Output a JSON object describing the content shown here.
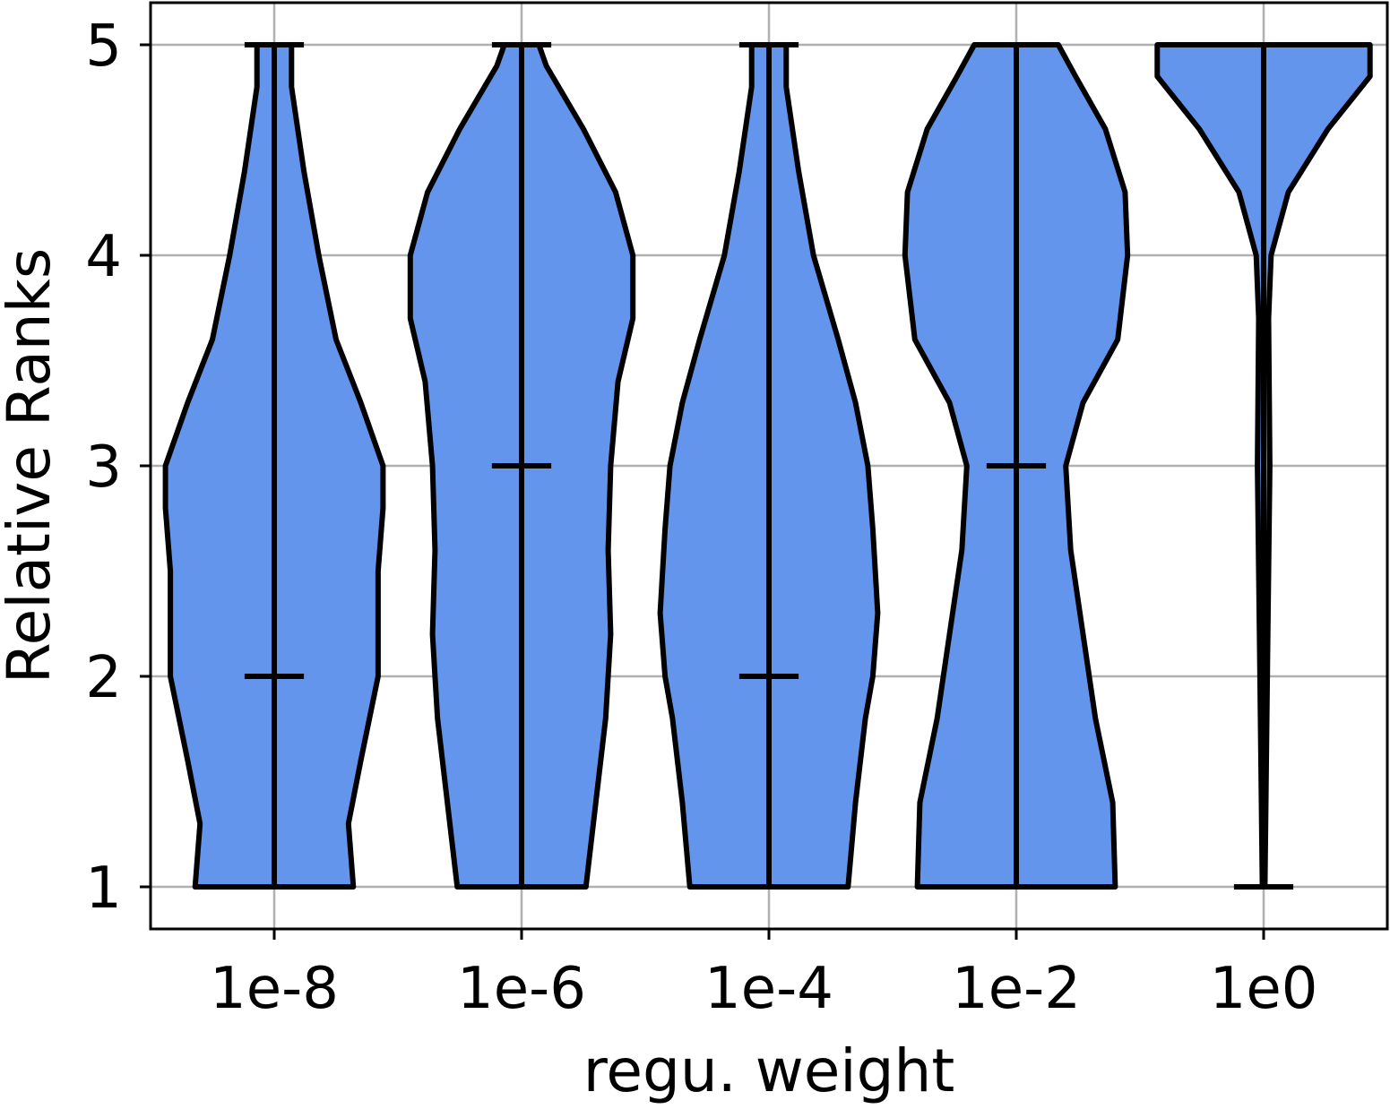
{
  "chart_data": {
    "type": "violin",
    "categories": [
      "1e-8",
      "1e-6",
      "1e-4",
      "1e-2",
      "1e0"
    ],
    "xlabel": "regu. weight",
    "ylabel": "Relative Ranks",
    "ylim": [
      0.8,
      5.2
    ],
    "yticks": [
      1,
      2,
      3,
      4,
      5
    ],
    "grid": true,
    "colors": {
      "fill": "#6495ED",
      "edge": "#000000",
      "grid": "#b0b0b0"
    },
    "series": [
      {
        "category": "1e-8",
        "min": 1,
        "max": 5,
        "median": 2,
        "profile": [
          [
            1.0,
            0.32
          ],
          [
            1.3,
            0.3
          ],
          [
            1.6,
            0.35
          ],
          [
            2.0,
            0.42
          ],
          [
            2.2,
            0.42
          ],
          [
            2.5,
            0.42
          ],
          [
            2.8,
            0.44
          ],
          [
            3.0,
            0.44
          ],
          [
            3.3,
            0.35
          ],
          [
            3.6,
            0.25
          ],
          [
            4.0,
            0.18
          ],
          [
            4.4,
            0.12
          ],
          [
            4.8,
            0.07
          ],
          [
            5.0,
            0.07
          ]
        ]
      },
      {
        "category": "1e-6",
        "min": 1,
        "max": 5,
        "median": 3,
        "profile": [
          [
            1.0,
            0.26
          ],
          [
            1.4,
            0.3
          ],
          [
            1.8,
            0.34
          ],
          [
            2.2,
            0.36
          ],
          [
            2.6,
            0.35
          ],
          [
            3.0,
            0.36
          ],
          [
            3.4,
            0.39
          ],
          [
            3.7,
            0.45
          ],
          [
            4.0,
            0.45
          ],
          [
            4.3,
            0.38
          ],
          [
            4.6,
            0.25
          ],
          [
            4.9,
            0.1
          ],
          [
            5.0,
            0.07
          ]
        ]
      },
      {
        "category": "1e-4",
        "min": 1,
        "max": 5,
        "median": 2,
        "profile": [
          [
            1.0,
            0.32
          ],
          [
            1.4,
            0.35
          ],
          [
            1.8,
            0.39
          ],
          [
            2.0,
            0.42
          ],
          [
            2.3,
            0.44
          ],
          [
            2.7,
            0.42
          ],
          [
            3.0,
            0.4
          ],
          [
            3.3,
            0.35
          ],
          [
            3.6,
            0.28
          ],
          [
            4.0,
            0.18
          ],
          [
            4.4,
            0.12
          ],
          [
            4.8,
            0.07
          ],
          [
            5.0,
            0.07
          ]
        ]
      },
      {
        "category": "1e-2",
        "min": 1,
        "max": 5,
        "median": 3,
        "profile": [
          [
            1.0,
            0.4
          ],
          [
            1.4,
            0.39
          ],
          [
            1.8,
            0.32
          ],
          [
            2.2,
            0.27
          ],
          [
            2.6,
            0.22
          ],
          [
            3.0,
            0.2
          ],
          [
            3.3,
            0.27
          ],
          [
            3.6,
            0.41
          ],
          [
            4.0,
            0.45
          ],
          [
            4.3,
            0.44
          ],
          [
            4.6,
            0.36
          ],
          [
            4.85,
            0.24
          ],
          [
            5.0,
            0.17
          ]
        ]
      },
      {
        "category": "1e0",
        "min": 1,
        "max": 5,
        "median": 5,
        "profile": [
          [
            1.0,
            0.005
          ],
          [
            2.0,
            0.015
          ],
          [
            3.0,
            0.025
          ],
          [
            3.7,
            0.02
          ],
          [
            4.0,
            0.03
          ],
          [
            4.3,
            0.1
          ],
          [
            4.6,
            0.26
          ],
          [
            4.85,
            0.43
          ],
          [
            5.0,
            0.43
          ]
        ]
      }
    ]
  }
}
